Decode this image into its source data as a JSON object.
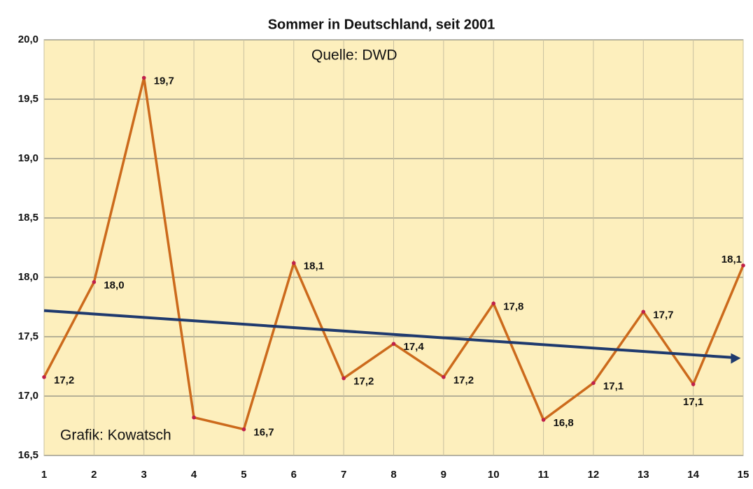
{
  "chart_data": {
    "type": "line",
    "title": "Sommer in Deutschland, seit 2001",
    "annotations": [
      "Quelle: DWD",
      "Grafik: Kowatsch"
    ],
    "x": [
      1,
      2,
      3,
      4,
      5,
      6,
      7,
      8,
      9,
      10,
      11,
      12,
      13,
      14,
      15
    ],
    "series": [
      {
        "name": "Sommer",
        "color": "#cc6a1c",
        "values": [
          17.16,
          17.96,
          19.68,
          16.82,
          16.72,
          18.12,
          17.15,
          17.44,
          17.16,
          17.78,
          16.8,
          17.11,
          17.71,
          17.1,
          18.1
        ],
        "value_labels": [
          "17,2",
          "18,0",
          "19,7",
          null,
          "16,7",
          "18,1",
          "17,2",
          "17,4",
          "17,2",
          "17,8",
          "16,8",
          "17,1",
          "17,7",
          "17,1",
          "18,1"
        ]
      }
    ],
    "trend": {
      "color": "#1f3a6e",
      "x": [
        1,
        14.95
      ],
      "values": [
        17.72,
        17.32
      ]
    },
    "xlim": [
      1,
      15
    ],
    "xticks": [
      1,
      2,
      3,
      4,
      5,
      6,
      7,
      8,
      9,
      10,
      11,
      12,
      13,
      14,
      15
    ],
    "ylim": [
      16.5,
      20
    ],
    "yticks": [
      {
        "value": 16.5,
        "label": "16,5"
      },
      {
        "value": 17,
        "label": "17,0"
      },
      {
        "value": 17.5,
        "label": "17,5"
      },
      {
        "value": 18,
        "label": "18,0"
      },
      {
        "value": 18.5,
        "label": "18,5"
      },
      {
        "value": 19,
        "label": "19,0"
      },
      {
        "value": 19.5,
        "label": "19,5"
      },
      {
        "value": 20,
        "label": "20,0"
      }
    ],
    "grid": true,
    "background": "#fdefbd"
  }
}
